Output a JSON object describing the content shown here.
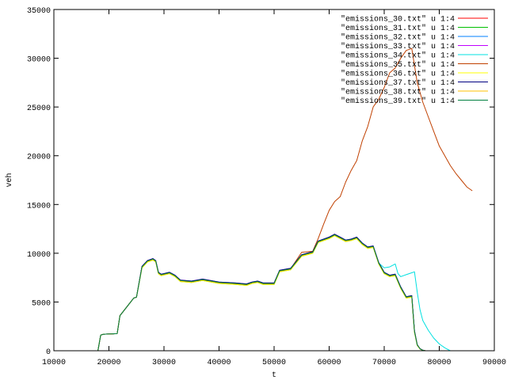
{
  "chart_data": {
    "type": "line",
    "title": "",
    "xlabel": "t",
    "ylabel": "veh",
    "xlim": [
      10000,
      90000
    ],
    "ylim": [
      0,
      35000
    ],
    "grid": false,
    "legend_position": "top-right",
    "x_ticks": [
      10000,
      20000,
      30000,
      40000,
      50000,
      60000,
      70000,
      80000,
      90000
    ],
    "y_ticks": [
      0,
      5000,
      10000,
      15000,
      20000,
      25000,
      30000,
      35000
    ],
    "x_tick_labels": [
      "10000",
      "20000",
      "30000",
      "40000",
      "50000",
      "60000",
      "70000",
      "80000",
      "90000"
    ],
    "y_tick_labels": [
      "0",
      "5000",
      "10000",
      "15000",
      "20000",
      "25000",
      "30000",
      "35000"
    ],
    "series": [
      {
        "name": "\"emissions_30.txt\" u 1:4",
        "color": "#ff0000",
        "x": [
          18000,
          18500,
          19000,
          21500,
          22000,
          24500,
          25000,
          26000,
          27000,
          28000,
          28500,
          29000,
          29500,
          31000,
          32000,
          33000,
          35000,
          37000,
          40000,
          43000,
          45000,
          46000,
          47000,
          48000,
          50000,
          51000,
          53000,
          55000,
          57000,
          58000,
          60000,
          61000,
          62000,
          63000,
          64000,
          65000,
          66000,
          67000,
          68000,
          69000,
          70000,
          71000,
          72000,
          73000,
          74000,
          75000,
          75500,
          76000,
          76500,
          77000,
          77500
        ],
        "y": [
          0,
          1600,
          1700,
          1750,
          3600,
          5400,
          5500,
          8600,
          9200,
          9400,
          9200,
          8000,
          7800,
          8000,
          7700,
          7200,
          7100,
          7300,
          7000,
          6900,
          6800,
          7000,
          7100,
          6900,
          6900,
          8200,
          8400,
          9800,
          10100,
          11200,
          11600,
          11900,
          11600,
          11300,
          11400,
          11600,
          11000,
          10600,
          10700,
          9000,
          8000,
          7700,
          7800,
          6500,
          5500,
          5600,
          2000,
          600,
          200,
          50,
          0
        ]
      },
      {
        "name": "\"emissions_31.txt\" u 1:4",
        "color": "#00c000",
        "x": [
          18000,
          18500,
          19000,
          21500,
          22000,
          24500,
          25000,
          26000,
          27000,
          28000,
          28500,
          29000,
          29500,
          31000,
          32000,
          33000,
          35000,
          37000,
          40000,
          43000,
          45000,
          46000,
          47000,
          48000,
          50000,
          51000,
          53000,
          55000,
          57000,
          58000,
          60000,
          61000,
          62000,
          63000,
          64000,
          65000,
          66000,
          67000,
          68000,
          69000,
          70000,
          71000,
          72000,
          73000,
          74000,
          75000,
          75500,
          76000,
          76500,
          77000,
          77500
        ],
        "y": [
          0,
          1600,
          1700,
          1750,
          3600,
          5400,
          5500,
          8500,
          9100,
          9300,
          9100,
          7900,
          7700,
          7900,
          7600,
          7100,
          7000,
          7200,
          6900,
          6800,
          6700,
          6900,
          7000,
          6800,
          6800,
          8100,
          8300,
          9700,
          10000,
          11100,
          11500,
          11800,
          11500,
          11200,
          11300,
          11500,
          10900,
          10500,
          10600,
          8900,
          7900,
          7600,
          7700,
          6400,
          5400,
          5500,
          1900,
          550,
          180,
          40,
          0
        ]
      },
      {
        "name": "\"emissions_32.txt\" u 1:4",
        "color": "#0080ff",
        "x": [
          18000,
          18500,
          19000,
          21500,
          22000,
          24500,
          25000,
          26000,
          27000,
          28000,
          28500,
          29000,
          29500,
          31000,
          32000,
          33000,
          35000,
          37000,
          40000,
          43000,
          45000,
          46000,
          47000,
          48000,
          50000,
          51000,
          53000,
          55000,
          57000,
          58000,
          60000,
          61000,
          62000,
          63000,
          64000,
          65000,
          66000,
          67000,
          68000,
          69000,
          70000,
          71000,
          72000,
          73000,
          74000,
          75000,
          75500,
          76000,
          76500,
          77000,
          77500
        ],
        "y": [
          0,
          1600,
          1700,
          1750,
          3600,
          5400,
          5500,
          8600,
          9200,
          9350,
          9150,
          7950,
          7750,
          7950,
          7650,
          7150,
          7050,
          7250,
          6950,
          6850,
          6750,
          6950,
          7050,
          6850,
          6850,
          8150,
          8350,
          9750,
          10050,
          11150,
          11550,
          11850,
          11550,
          11250,
          11350,
          11550,
          10950,
          10550,
          10650,
          8950,
          7950,
          7650,
          7750,
          6450,
          5450,
          5550,
          1950,
          580,
          190,
          45,
          0
        ]
      },
      {
        "name": "\"emissions_33.txt\" u 1:4",
        "color": "#c000ff",
        "x": [
          18000,
          18500,
          19000,
          21500,
          22000,
          24500,
          25000,
          26000,
          27000,
          28000,
          28500,
          29000,
          29500,
          31000,
          32000,
          33000,
          35000,
          37000,
          40000,
          43000,
          45000,
          46000,
          47000,
          48000,
          50000,
          51000,
          53000,
          55000,
          57000,
          58000,
          60000,
          61000,
          62000,
          63000,
          64000,
          65000,
          66000,
          67000,
          68000,
          69000,
          70000,
          71000,
          72000,
          73000,
          74000,
          75000,
          75500,
          76000,
          76500,
          77000,
          77500
        ],
        "y": [
          0,
          1600,
          1700,
          1750,
          3600,
          5400,
          5500,
          8650,
          9250,
          9450,
          9250,
          8050,
          7850,
          8050,
          7750,
          7250,
          7150,
          7350,
          7050,
          6950,
          6850,
          7050,
          7150,
          6950,
          6950,
          8250,
          8450,
          9850,
          10150,
          11250,
          11650,
          11950,
          11650,
          11350,
          11450,
          11650,
          11050,
          10650,
          10750,
          9050,
          8050,
          7750,
          7850,
          6550,
          5550,
          5650,
          2050,
          620,
          210,
          55,
          0
        ]
      },
      {
        "name": "\"emissions_34.txt\" u 1:4",
        "color": "#00e0e0",
        "x": [
          18000,
          18500,
          19000,
          21500,
          22000,
          24500,
          25000,
          26000,
          27000,
          28000,
          28500,
          29000,
          29500,
          31000,
          32000,
          33000,
          35000,
          37000,
          40000,
          43000,
          45000,
          46000,
          47000,
          48000,
          50000,
          51000,
          53000,
          55000,
          57000,
          58000,
          60000,
          61000,
          62000,
          63000,
          64000,
          65000,
          66000,
          67000,
          68000,
          69000,
          70000,
          71000,
          72000,
          72500,
          73000,
          74000,
          75000,
          75500,
          76000,
          76500,
          77000,
          78000,
          79000,
          80000,
          81000,
          82000
        ],
        "y": [
          0,
          1600,
          1700,
          1750,
          3600,
          5400,
          5500,
          8550,
          9150,
          9350,
          9150,
          7950,
          7750,
          7950,
          7650,
          7150,
          7050,
          7250,
          6950,
          6850,
          6750,
          6950,
          7050,
          6850,
          6850,
          8150,
          8350,
          9750,
          10050,
          11150,
          11550,
          11850,
          11550,
          11250,
          11350,
          11550,
          10950,
          10550,
          10650,
          9000,
          8500,
          8600,
          8900,
          7900,
          7600,
          7800,
          8000,
          8100,
          6000,
          4200,
          3100,
          2100,
          1300,
          700,
          300,
          0
        ]
      },
      {
        "name": "\"emissions_35.txt\" u 1:4",
        "color": "#c04000",
        "x": [
          18000,
          18500,
          19000,
          21500,
          22000,
          24500,
          25000,
          26000,
          27000,
          28000,
          28500,
          29000,
          29500,
          31000,
          32000,
          33000,
          35000,
          37000,
          40000,
          43000,
          45000,
          46000,
          47000,
          48000,
          50000,
          51000,
          53000,
          55000,
          57000,
          58000,
          59000,
          60000,
          61000,
          62000,
          63000,
          64000,
          65000,
          66000,
          67000,
          68000,
          69000,
          70000,
          71000,
          72000,
          73000,
          74000,
          75000,
          76000,
          77000,
          78000,
          79000,
          80000,
          81000,
          82000,
          83000,
          84000,
          85000,
          86000
        ],
        "y": [
          0,
          1600,
          1700,
          1750,
          3600,
          5400,
          5500,
          8600,
          9200,
          9400,
          9200,
          8000,
          7800,
          8000,
          7700,
          7200,
          7100,
          7300,
          7000,
          6900,
          6800,
          7000,
          7100,
          6900,
          6900,
          8200,
          8400,
          10100,
          10200,
          11500,
          13000,
          14400,
          15300,
          15800,
          17300,
          18500,
          19500,
          21500,
          23000,
          25000,
          25800,
          27000,
          28500,
          29000,
          30000,
          30800,
          31000,
          27500,
          25500,
          24000,
          22500,
          21000,
          20000,
          19000,
          18200,
          17500,
          16800,
          16400
        ]
      },
      {
        "name": "\"emissions_36.txt\" u 1:4",
        "color": "#ffff00",
        "x": [
          18000,
          18500,
          19000,
          21500,
          22000,
          24500,
          25000,
          26000,
          27000,
          28000,
          28500,
          29000,
          29500,
          31000,
          32000,
          33000,
          35000,
          37000,
          40000,
          43000,
          45000,
          46000,
          47000,
          48000,
          50000,
          51000,
          53000,
          55000,
          57000,
          58000,
          60000,
          61000,
          62000,
          63000,
          64000,
          65000,
          66000,
          67000,
          68000,
          69000,
          70000,
          71000,
          72000,
          73000,
          74000,
          75000,
          75500,
          76000,
          76500,
          77000,
          77500
        ],
        "y": [
          0,
          1600,
          1700,
          1750,
          3600,
          5400,
          5500,
          8500,
          9100,
          9300,
          9100,
          7900,
          7700,
          7900,
          7600,
          7100,
          7000,
          7200,
          6900,
          6800,
          6700,
          6900,
          7000,
          6800,
          6800,
          8100,
          8300,
          9700,
          10000,
          11100,
          11500,
          11800,
          11500,
          11200,
          11300,
          11500,
          10900,
          10500,
          10600,
          8900,
          7900,
          7600,
          7700,
          6400,
          5400,
          5500,
          1900,
          550,
          180,
          40,
          0
        ]
      },
      {
        "name": "\"emissions_37.txt\" u 1:4",
        "color": "#000080",
        "x": [
          18000,
          18500,
          19000,
          21500,
          22000,
          24500,
          25000,
          26000,
          27000,
          28000,
          28500,
          29000,
          29500,
          31000,
          32000,
          33000,
          35000,
          37000,
          40000,
          43000,
          45000,
          46000,
          47000,
          48000,
          50000,
          51000,
          53000,
          55000,
          57000,
          58000,
          60000,
          61000,
          62000,
          63000,
          64000,
          65000,
          66000,
          67000,
          68000,
          69000,
          70000,
          71000,
          72000,
          73000,
          74000,
          75000,
          75500,
          76000,
          76500,
          77000,
          77500
        ],
        "y": [
          0,
          1600,
          1700,
          1750,
          3600,
          5400,
          5500,
          8650,
          9250,
          9450,
          9250,
          8050,
          7850,
          8050,
          7750,
          7250,
          7150,
          7350,
          7050,
          6950,
          6850,
          7050,
          7150,
          6950,
          6950,
          8250,
          8450,
          9850,
          10150,
          11250,
          11650,
          11950,
          11650,
          11350,
          11450,
          11650,
          11050,
          10650,
          10750,
          9050,
          8050,
          7750,
          7850,
          6550,
          5550,
          5650,
          2050,
          620,
          210,
          55,
          0
        ]
      },
      {
        "name": "\"emissions_38.txt\" u 1:4",
        "color": "#ffc000",
        "x": [
          18000,
          18500,
          19000,
          21500,
          22000,
          24500,
          25000,
          26000,
          27000,
          28000,
          28500,
          29000,
          29500,
          31000,
          32000,
          33000,
          35000,
          37000,
          40000,
          43000,
          45000,
          46000,
          47000,
          48000,
          50000,
          51000,
          53000,
          55000,
          57000,
          58000,
          60000,
          61000,
          62000,
          63000,
          64000,
          65000,
          66000,
          67000,
          68000,
          69000,
          70000,
          71000,
          72000,
          73000,
          74000,
          75000,
          75500,
          76000,
          76500,
          77000,
          77500
        ],
        "y": [
          0,
          1600,
          1700,
          1750,
          3600,
          5400,
          5500,
          8550,
          9150,
          9350,
          9150,
          7950,
          7750,
          7950,
          7650,
          7150,
          7050,
          7250,
          6950,
          6850,
          6750,
          6950,
          7050,
          6850,
          6850,
          8150,
          8350,
          9750,
          10050,
          11150,
          11550,
          11850,
          11550,
          11250,
          11350,
          11550,
          10950,
          10550,
          10650,
          8950,
          7950,
          7650,
          7750,
          6450,
          5450,
          5550,
          1950,
          580,
          190,
          45,
          0
        ]
      },
      {
        "name": "\"emissions_39.txt\" u 1:4",
        "color": "#008040",
        "x": [
          18000,
          18500,
          19000,
          21500,
          22000,
          24500,
          25000,
          26000,
          27000,
          28000,
          28500,
          29000,
          29500,
          31000,
          32000,
          33000,
          35000,
          37000,
          40000,
          43000,
          45000,
          46000,
          47000,
          48000,
          50000,
          51000,
          53000,
          55000,
          57000,
          58000,
          60000,
          61000,
          62000,
          63000,
          64000,
          65000,
          66000,
          67000,
          68000,
          69000,
          70000,
          71000,
          72000,
          73000,
          74000,
          75000,
          75500,
          76000,
          76500,
          77000,
          77500
        ],
        "y": [
          0,
          1600,
          1700,
          1750,
          3600,
          5400,
          5500,
          8600,
          9200,
          9400,
          9200,
          8000,
          7800,
          8000,
          7700,
          7200,
          7100,
          7300,
          7000,
          6900,
          6800,
          7000,
          7100,
          6900,
          6900,
          8200,
          8400,
          9800,
          10100,
          11200,
          11600,
          11900,
          11600,
          11300,
          11400,
          11600,
          11000,
          10600,
          10700,
          9000,
          8000,
          7700,
          7800,
          6500,
          5500,
          5600,
          2000,
          600,
          200,
          50,
          0
        ]
      }
    ]
  }
}
